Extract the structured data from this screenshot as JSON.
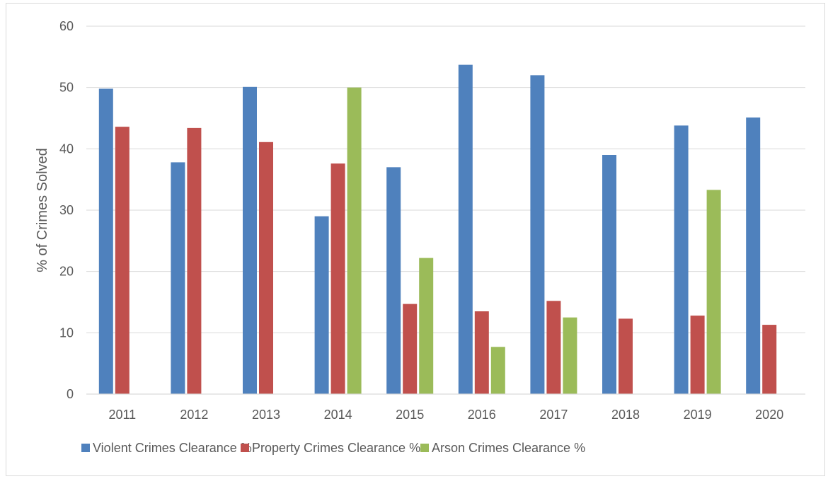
{
  "chart_data": {
    "type": "bar",
    "title": "",
    "xlabel": "",
    "ylabel": "% of Crimes Solved",
    "ylim": [
      0,
      60
    ],
    "yticks": [
      0,
      10,
      20,
      30,
      40,
      50,
      60
    ],
    "grid": true,
    "legend_position": "bottom-left",
    "categories": [
      "2011",
      "2012",
      "2013",
      "2014",
      "2015",
      "2016",
      "2017",
      "2018",
      "2019",
      "2020"
    ],
    "series": [
      {
        "name": "Violent Crimes Clearance %",
        "color": "#4f81bd",
        "values": [
          49.8,
          37.8,
          50.1,
          29.0,
          37.0,
          53.7,
          52.0,
          39.0,
          43.8,
          45.1
        ]
      },
      {
        "name": "Property Crimes Clearance %",
        "color": "#c0504d",
        "values": [
          43.6,
          43.4,
          41.1,
          37.6,
          14.7,
          13.5,
          15.2,
          12.3,
          12.8,
          11.3
        ]
      },
      {
        "name": "Arson Crimes Clearance %",
        "color": "#9bbb59",
        "values": [
          0,
          0,
          0,
          50.0,
          22.2,
          7.7,
          12.5,
          0,
          33.3,
          0
        ]
      }
    ]
  }
}
